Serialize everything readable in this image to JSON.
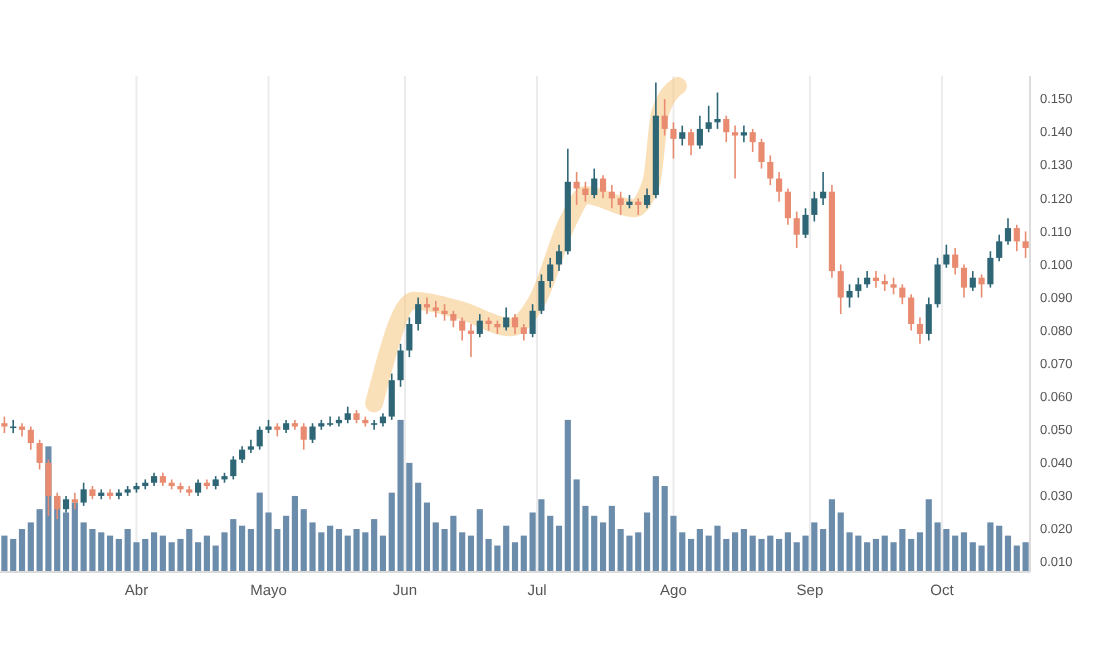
{
  "chart_data": {
    "type": "candlestick",
    "x": [
      "--03-02",
      "--03-04",
      "--03-06",
      "--03-08",
      "--03-10",
      "--03-12",
      "--03-14",
      "--03-16",
      "--03-18",
      "--03-20",
      "--03-22",
      "--03-24",
      "--03-26",
      "--03-28",
      "--03-30",
      "--04-01",
      "--04-03",
      "--04-05",
      "--04-07",
      "--04-09",
      "--04-11",
      "--04-13",
      "--04-15",
      "--04-17",
      "--04-19",
      "--04-21",
      "--04-23",
      "--04-25",
      "--04-27",
      "--04-29",
      "--05-01",
      "--05-03",
      "--05-05",
      "--05-07",
      "--05-09",
      "--05-11",
      "--05-13",
      "--05-15",
      "--05-17",
      "--05-19",
      "--05-21",
      "--05-23",
      "--05-25",
      "--05-27",
      "--05-29",
      "--05-31",
      "--06-02",
      "--06-04",
      "--06-06",
      "--06-08",
      "--06-10",
      "--06-12",
      "--06-14",
      "--06-16",
      "--06-18",
      "--06-20",
      "--06-22",
      "--06-24",
      "--06-26",
      "--06-28",
      "--06-30",
      "--07-02",
      "--07-04",
      "--07-06",
      "--07-08",
      "--07-10",
      "--07-12",
      "--07-14",
      "--07-16",
      "--07-18",
      "--07-20",
      "--07-22",
      "--07-24",
      "--07-26",
      "--07-28",
      "--07-30",
      "--08-01",
      "--08-03",
      "--08-05",
      "--08-07",
      "--08-09",
      "--08-11",
      "--08-13",
      "--08-15",
      "--08-17",
      "--08-19",
      "--08-21",
      "--08-23",
      "--08-25",
      "--08-27",
      "--08-29",
      "--08-31",
      "--09-02",
      "--09-04",
      "--09-06",
      "--09-08",
      "--09-10",
      "--09-12",
      "--09-14",
      "--09-16",
      "--09-18",
      "--09-20",
      "--09-22",
      "--09-24",
      "--09-26",
      "--09-28",
      "--09-30",
      "--10-02",
      "--10-04",
      "--10-06",
      "--10-08",
      "--10-10",
      "--10-12",
      "--10-14",
      "--10-16",
      "--10-18",
      "--10-20"
    ],
    "series": [
      {
        "type": "bar",
        "color": "#6c8cab",
        "values": [
          0.018,
          0.017,
          0.02,
          0.022,
          0.026,
          0.045,
          0.03,
          0.025,
          0.028,
          0.022,
          0.02,
          0.019,
          0.018,
          0.017,
          0.02,
          0.016,
          0.017,
          0.019,
          0.018,
          0.016,
          0.017,
          0.02,
          0.016,
          0.018,
          0.015,
          0.019,
          0.023,
          0.021,
          0.02,
          0.031,
          0.025,
          0.02,
          0.024,
          0.03,
          0.026,
          0.022,
          0.019,
          0.021,
          0.02,
          0.018,
          0.02,
          0.019,
          0.023,
          0.018,
          0.031,
          0.053,
          0.04,
          0.034,
          0.028,
          0.022,
          0.02,
          0.024,
          0.019,
          0.018,
          0.026,
          0.017,
          0.015,
          0.021,
          0.016,
          0.018,
          0.025,
          0.029,
          0.024,
          0.021,
          0.053,
          0.035,
          0.027,
          0.024,
          0.022,
          0.027,
          0.02,
          0.018,
          0.019,
          0.025,
          0.036,
          0.033,
          0.024,
          0.019,
          0.017,
          0.02,
          0.018,
          0.021,
          0.017,
          0.019,
          0.02,
          0.018,
          0.017,
          0.018,
          0.017,
          0.019,
          0.016,
          0.018,
          0.022,
          0.02,
          0.029,
          0.025,
          0.019,
          0.018,
          0.016,
          0.017,
          0.018,
          0.016,
          0.02,
          0.017,
          0.019,
          0.029,
          0.022,
          0.02,
          0.018,
          0.019,
          0.016,
          0.015,
          0.022,
          0.021,
          0.018,
          0.015,
          0.016
        ]
      },
      {
        "type": "line",
        "color": "#f5c77e",
        "x": [
          "--05-25",
          "--06-03",
          "--06-14",
          "--06-25",
          "--07-01",
          "--07-08",
          "--07-12",
          "--07-23",
          "--07-27",
          "--07-29",
          "--08-02"
        ],
        "values": [
          0.058,
          0.089,
          0.086,
          0.081,
          0.089,
          0.113,
          0.121,
          0.117,
          0.125,
          0.146,
          0.154
        ]
      },
      {
        "type": "candlestick",
        "colors": [
          "#e88b70",
          "#2f6676",
          "#e88b70",
          "#e88b70",
          "#e88b70",
          "#e88b70",
          "#e88b70",
          "#2f6676",
          "#e88b70",
          "#2f6676",
          "#e88b70",
          "#2f6676",
          "#e88b70",
          "#2f6676",
          "#2f6676",
          "#2f6676",
          "#2f6676",
          "#2f6676",
          "#e88b70",
          "#e88b70",
          "#e88b70",
          "#e88b70",
          "#2f6676",
          "#e88b70",
          "#2f6676",
          "#2f6676",
          "#2f6676",
          "#2f6676",
          "#2f6676",
          "#2f6676",
          "#2f6676",
          "#e88b70",
          "#2f6676",
          "#e88b70",
          "#e88b70",
          "#2f6676",
          "#2f6676",
          "#2f6676",
          "#2f6676",
          "#2f6676",
          "#e88b70",
          "#e88b70",
          "#2f6676",
          "#2f6676",
          "#2f6676",
          "#2f6676",
          "#2f6676",
          "#2f6676",
          "#e88b70",
          "#e88b70",
          "#e88b70",
          "#e88b70",
          "#e88b70",
          "#e88b70",
          "#2f6676",
          "#e88b70",
          "#e88b70",
          "#2f6676",
          "#e88b70",
          "#e88b70",
          "#2f6676",
          "#2f6676",
          "#2f6676",
          "#2f6676",
          "#2f6676",
          "#e88b70",
          "#e88b70",
          "#2f6676",
          "#e88b70",
          "#e88b70",
          "#e88b70",
          "#2f6676",
          "#e88b70",
          "#2f6676",
          "#2f6676",
          "#e88b70",
          "#e88b70",
          "#2f6676",
          "#e88b70",
          "#2f6676",
          "#2f6676",
          "#2f6676",
          "#e88b70",
          "#e88b70",
          "#2f6676",
          "#e88b70",
          "#e88b70",
          "#e88b70",
          "#e88b70",
          "#e88b70",
          "#e88b70",
          "#2f6676",
          "#2f6676",
          "#2f6676",
          "#e88b70",
          "#e88b70",
          "#2f6676",
          "#2f6676",
          "#2f6676",
          "#e88b70",
          "#e88b70",
          "#e88b70",
          "#e88b70",
          "#e88b70",
          "#e88b70",
          "#2f6676",
          "#2f6676",
          "#2f6676",
          "#e88b70",
          "#e88b70",
          "#2f6676",
          "#e88b70",
          "#2f6676",
          "#2f6676",
          "#2f6676",
          "#e88b70",
          "#e88b70"
        ],
        "ohlc": [
          [
            0.052,
            0.054,
            0.049,
            0.051
          ],
          [
            0.051,
            0.053,
            0.049,
            0.051
          ],
          [
            0.051,
            0.052,
            0.048,
            0.05
          ],
          [
            0.05,
            0.051,
            0.044,
            0.046
          ],
          [
            0.046,
            0.047,
            0.038,
            0.04
          ],
          [
            0.04,
            0.041,
            0.024,
            0.03
          ],
          [
            0.03,
            0.031,
            0.023,
            0.026
          ],
          [
            0.026,
            0.03,
            0.025,
            0.029
          ],
          [
            0.029,
            0.031,
            0.026,
            0.028
          ],
          [
            0.028,
            0.034,
            0.027,
            0.032
          ],
          [
            0.032,
            0.033,
            0.029,
            0.03
          ],
          [
            0.03,
            0.032,
            0.029,
            0.031
          ],
          [
            0.031,
            0.032,
            0.029,
            0.03
          ],
          [
            0.03,
            0.032,
            0.029,
            0.031
          ],
          [
            0.031,
            0.033,
            0.03,
            0.032
          ],
          [
            0.032,
            0.034,
            0.031,
            0.033
          ],
          [
            0.033,
            0.035,
            0.032,
            0.034
          ],
          [
            0.034,
            0.037,
            0.033,
            0.036
          ],
          [
            0.036,
            0.037,
            0.033,
            0.034
          ],
          [
            0.034,
            0.035,
            0.032,
            0.033
          ],
          [
            0.033,
            0.034,
            0.031,
            0.032
          ],
          [
            0.032,
            0.033,
            0.03,
            0.031
          ],
          [
            0.031,
            0.035,
            0.03,
            0.034
          ],
          [
            0.034,
            0.035,
            0.032,
            0.033
          ],
          [
            0.033,
            0.036,
            0.032,
            0.035
          ],
          [
            0.035,
            0.037,
            0.034,
            0.036
          ],
          [
            0.036,
            0.042,
            0.035,
            0.041
          ],
          [
            0.041,
            0.045,
            0.04,
            0.044
          ],
          [
            0.044,
            0.047,
            0.043,
            0.045
          ],
          [
            0.045,
            0.051,
            0.044,
            0.05
          ],
          [
            0.05,
            0.053,
            0.049,
            0.051
          ],
          [
            0.051,
            0.052,
            0.048,
            0.05
          ],
          [
            0.05,
            0.053,
            0.049,
            0.052
          ],
          [
            0.052,
            0.053,
            0.05,
            0.051
          ],
          [
            0.051,
            0.052,
            0.044,
            0.047
          ],
          [
            0.047,
            0.052,
            0.046,
            0.051
          ],
          [
            0.051,
            0.053,
            0.05,
            0.052
          ],
          [
            0.052,
            0.054,
            0.051,
            0.052
          ],
          [
            0.052,
            0.054,
            0.051,
            0.053
          ],
          [
            0.053,
            0.057,
            0.052,
            0.055
          ],
          [
            0.055,
            0.056,
            0.052,
            0.053
          ],
          [
            0.053,
            0.054,
            0.051,
            0.052
          ],
          [
            0.052,
            0.053,
            0.05,
            0.052
          ],
          [
            0.052,
            0.055,
            0.051,
            0.054
          ],
          [
            0.054,
            0.067,
            0.053,
            0.065
          ],
          [
            0.065,
            0.076,
            0.063,
            0.074
          ],
          [
            0.074,
            0.084,
            0.072,
            0.082
          ],
          [
            0.082,
            0.09,
            0.08,
            0.088
          ],
          [
            0.088,
            0.09,
            0.085,
            0.087
          ],
          [
            0.087,
            0.089,
            0.084,
            0.086
          ],
          [
            0.086,
            0.088,
            0.083,
            0.085
          ],
          [
            0.085,
            0.086,
            0.081,
            0.083
          ],
          [
            0.083,
            0.084,
            0.077,
            0.08
          ],
          [
            0.08,
            0.082,
            0.072,
            0.079
          ],
          [
            0.079,
            0.085,
            0.078,
            0.083
          ],
          [
            0.083,
            0.084,
            0.08,
            0.082
          ],
          [
            0.082,
            0.083,
            0.079,
            0.081
          ],
          [
            0.081,
            0.087,
            0.08,
            0.084
          ],
          [
            0.084,
            0.085,
            0.079,
            0.081
          ],
          [
            0.081,
            0.082,
            0.077,
            0.079
          ],
          [
            0.079,
            0.088,
            0.078,
            0.086
          ],
          [
            0.086,
            0.097,
            0.085,
            0.095
          ],
          [
            0.095,
            0.102,
            0.093,
            0.1
          ],
          [
            0.1,
            0.106,
            0.098,
            0.104
          ],
          [
            0.104,
            0.135,
            0.103,
            0.125
          ],
          [
            0.125,
            0.128,
            0.118,
            0.123
          ],
          [
            0.123,
            0.125,
            0.119,
            0.121
          ],
          [
            0.121,
            0.129,
            0.12,
            0.126
          ],
          [
            0.126,
            0.127,
            0.12,
            0.122
          ],
          [
            0.122,
            0.124,
            0.117,
            0.12
          ],
          [
            0.12,
            0.122,
            0.115,
            0.118
          ],
          [
            0.118,
            0.121,
            0.117,
            0.119
          ],
          [
            0.119,
            0.12,
            0.115,
            0.118
          ],
          [
            0.118,
            0.123,
            0.117,
            0.121
          ],
          [
            0.121,
            0.155,
            0.12,
            0.145
          ],
          [
            0.145,
            0.15,
            0.139,
            0.141
          ],
          [
            0.141,
            0.143,
            0.132,
            0.138
          ],
          [
            0.138,
            0.142,
            0.136,
            0.14
          ],
          [
            0.14,
            0.141,
            0.133,
            0.136
          ],
          [
            0.136,
            0.145,
            0.135,
            0.141
          ],
          [
            0.141,
            0.148,
            0.14,
            0.143
          ],
          [
            0.143,
            0.152,
            0.141,
            0.144
          ],
          [
            0.144,
            0.145,
            0.137,
            0.14
          ],
          [
            0.14,
            0.142,
            0.126,
            0.139
          ],
          [
            0.139,
            0.142,
            0.137,
            0.14
          ],
          [
            0.14,
            0.141,
            0.134,
            0.137
          ],
          [
            0.137,
            0.138,
            0.129,
            0.131
          ],
          [
            0.131,
            0.133,
            0.124,
            0.126
          ],
          [
            0.126,
            0.128,
            0.119,
            0.122
          ],
          [
            0.122,
            0.123,
            0.112,
            0.114
          ],
          [
            0.114,
            0.116,
            0.105,
            0.109
          ],
          [
            0.109,
            0.117,
            0.108,
            0.115
          ],
          [
            0.115,
            0.122,
            0.113,
            0.12
          ],
          [
            0.12,
            0.128,
            0.118,
            0.122
          ],
          [
            0.122,
            0.124,
            0.096,
            0.098
          ],
          [
            0.098,
            0.1,
            0.085,
            0.09
          ],
          [
            0.09,
            0.094,
            0.087,
            0.092
          ],
          [
            0.092,
            0.096,
            0.09,
            0.094
          ],
          [
            0.094,
            0.098,
            0.093,
            0.096
          ],
          [
            0.096,
            0.098,
            0.093,
            0.095
          ],
          [
            0.095,
            0.097,
            0.092,
            0.094
          ],
          [
            0.094,
            0.096,
            0.091,
            0.093
          ],
          [
            0.093,
            0.094,
            0.088,
            0.09
          ],
          [
            0.09,
            0.091,
            0.08,
            0.082
          ],
          [
            0.082,
            0.084,
            0.076,
            0.079
          ],
          [
            0.079,
            0.09,
            0.077,
            0.088
          ],
          [
            0.088,
            0.102,
            0.087,
            0.1
          ],
          [
            0.1,
            0.106,
            0.099,
            0.103
          ],
          [
            0.103,
            0.105,
            0.097,
            0.099
          ],
          [
            0.099,
            0.1,
            0.09,
            0.093
          ],
          [
            0.093,
            0.098,
            0.092,
            0.096
          ],
          [
            0.096,
            0.097,
            0.09,
            0.094
          ],
          [
            0.094,
            0.104,
            0.093,
            0.102
          ],
          [
            0.102,
            0.109,
            0.101,
            0.107
          ],
          [
            0.107,
            0.114,
            0.106,
            0.111
          ],
          [
            0.111,
            0.112,
            0.104,
            0.107
          ],
          [
            0.107,
            0.11,
            0.102,
            0.105
          ]
        ]
      }
    ],
    "xlim": [
      "--03-01",
      "--10-21"
    ],
    "xticks": [
      {
        "value": "--04-01",
        "label": "Abr"
      },
      {
        "value": "--05-01",
        "label": "Mayo"
      },
      {
        "value": "--06-01",
        "label": "Jun"
      },
      {
        "value": "--07-01",
        "label": "Jul"
      },
      {
        "value": "--08-01",
        "label": "Ago"
      },
      {
        "value": "--09-01",
        "label": "Sep"
      },
      {
        "value": "--10-01",
        "label": "Oct"
      }
    ],
    "ylim": [
      0.007,
      0.157
    ],
    "yticks": [
      {
        "value": 0.01,
        "label": "0.010"
      },
      {
        "value": 0.02,
        "label": "0.020"
      },
      {
        "value": 0.03,
        "label": "0.030"
      },
      {
        "value": 0.04,
        "label": "0.040"
      },
      {
        "value": 0.05,
        "label": "0.050"
      },
      {
        "value": 0.06,
        "label": "0.060"
      },
      {
        "value": 0.07,
        "label": "0.070"
      },
      {
        "value": 0.08,
        "label": "0.080"
      },
      {
        "value": 0.09,
        "label": "0.090"
      },
      {
        "value": 0.1,
        "label": "0.100"
      },
      {
        "value": 0.11,
        "label": "0.110"
      },
      {
        "value": 0.12,
        "label": "0.120"
      },
      {
        "value": 0.13,
        "label": "0.130"
      },
      {
        "value": 0.14,
        "label": "0.140"
      },
      {
        "value": 0.15,
        "label": "0.150"
      }
    ],
    "grid": "x"
  }
}
